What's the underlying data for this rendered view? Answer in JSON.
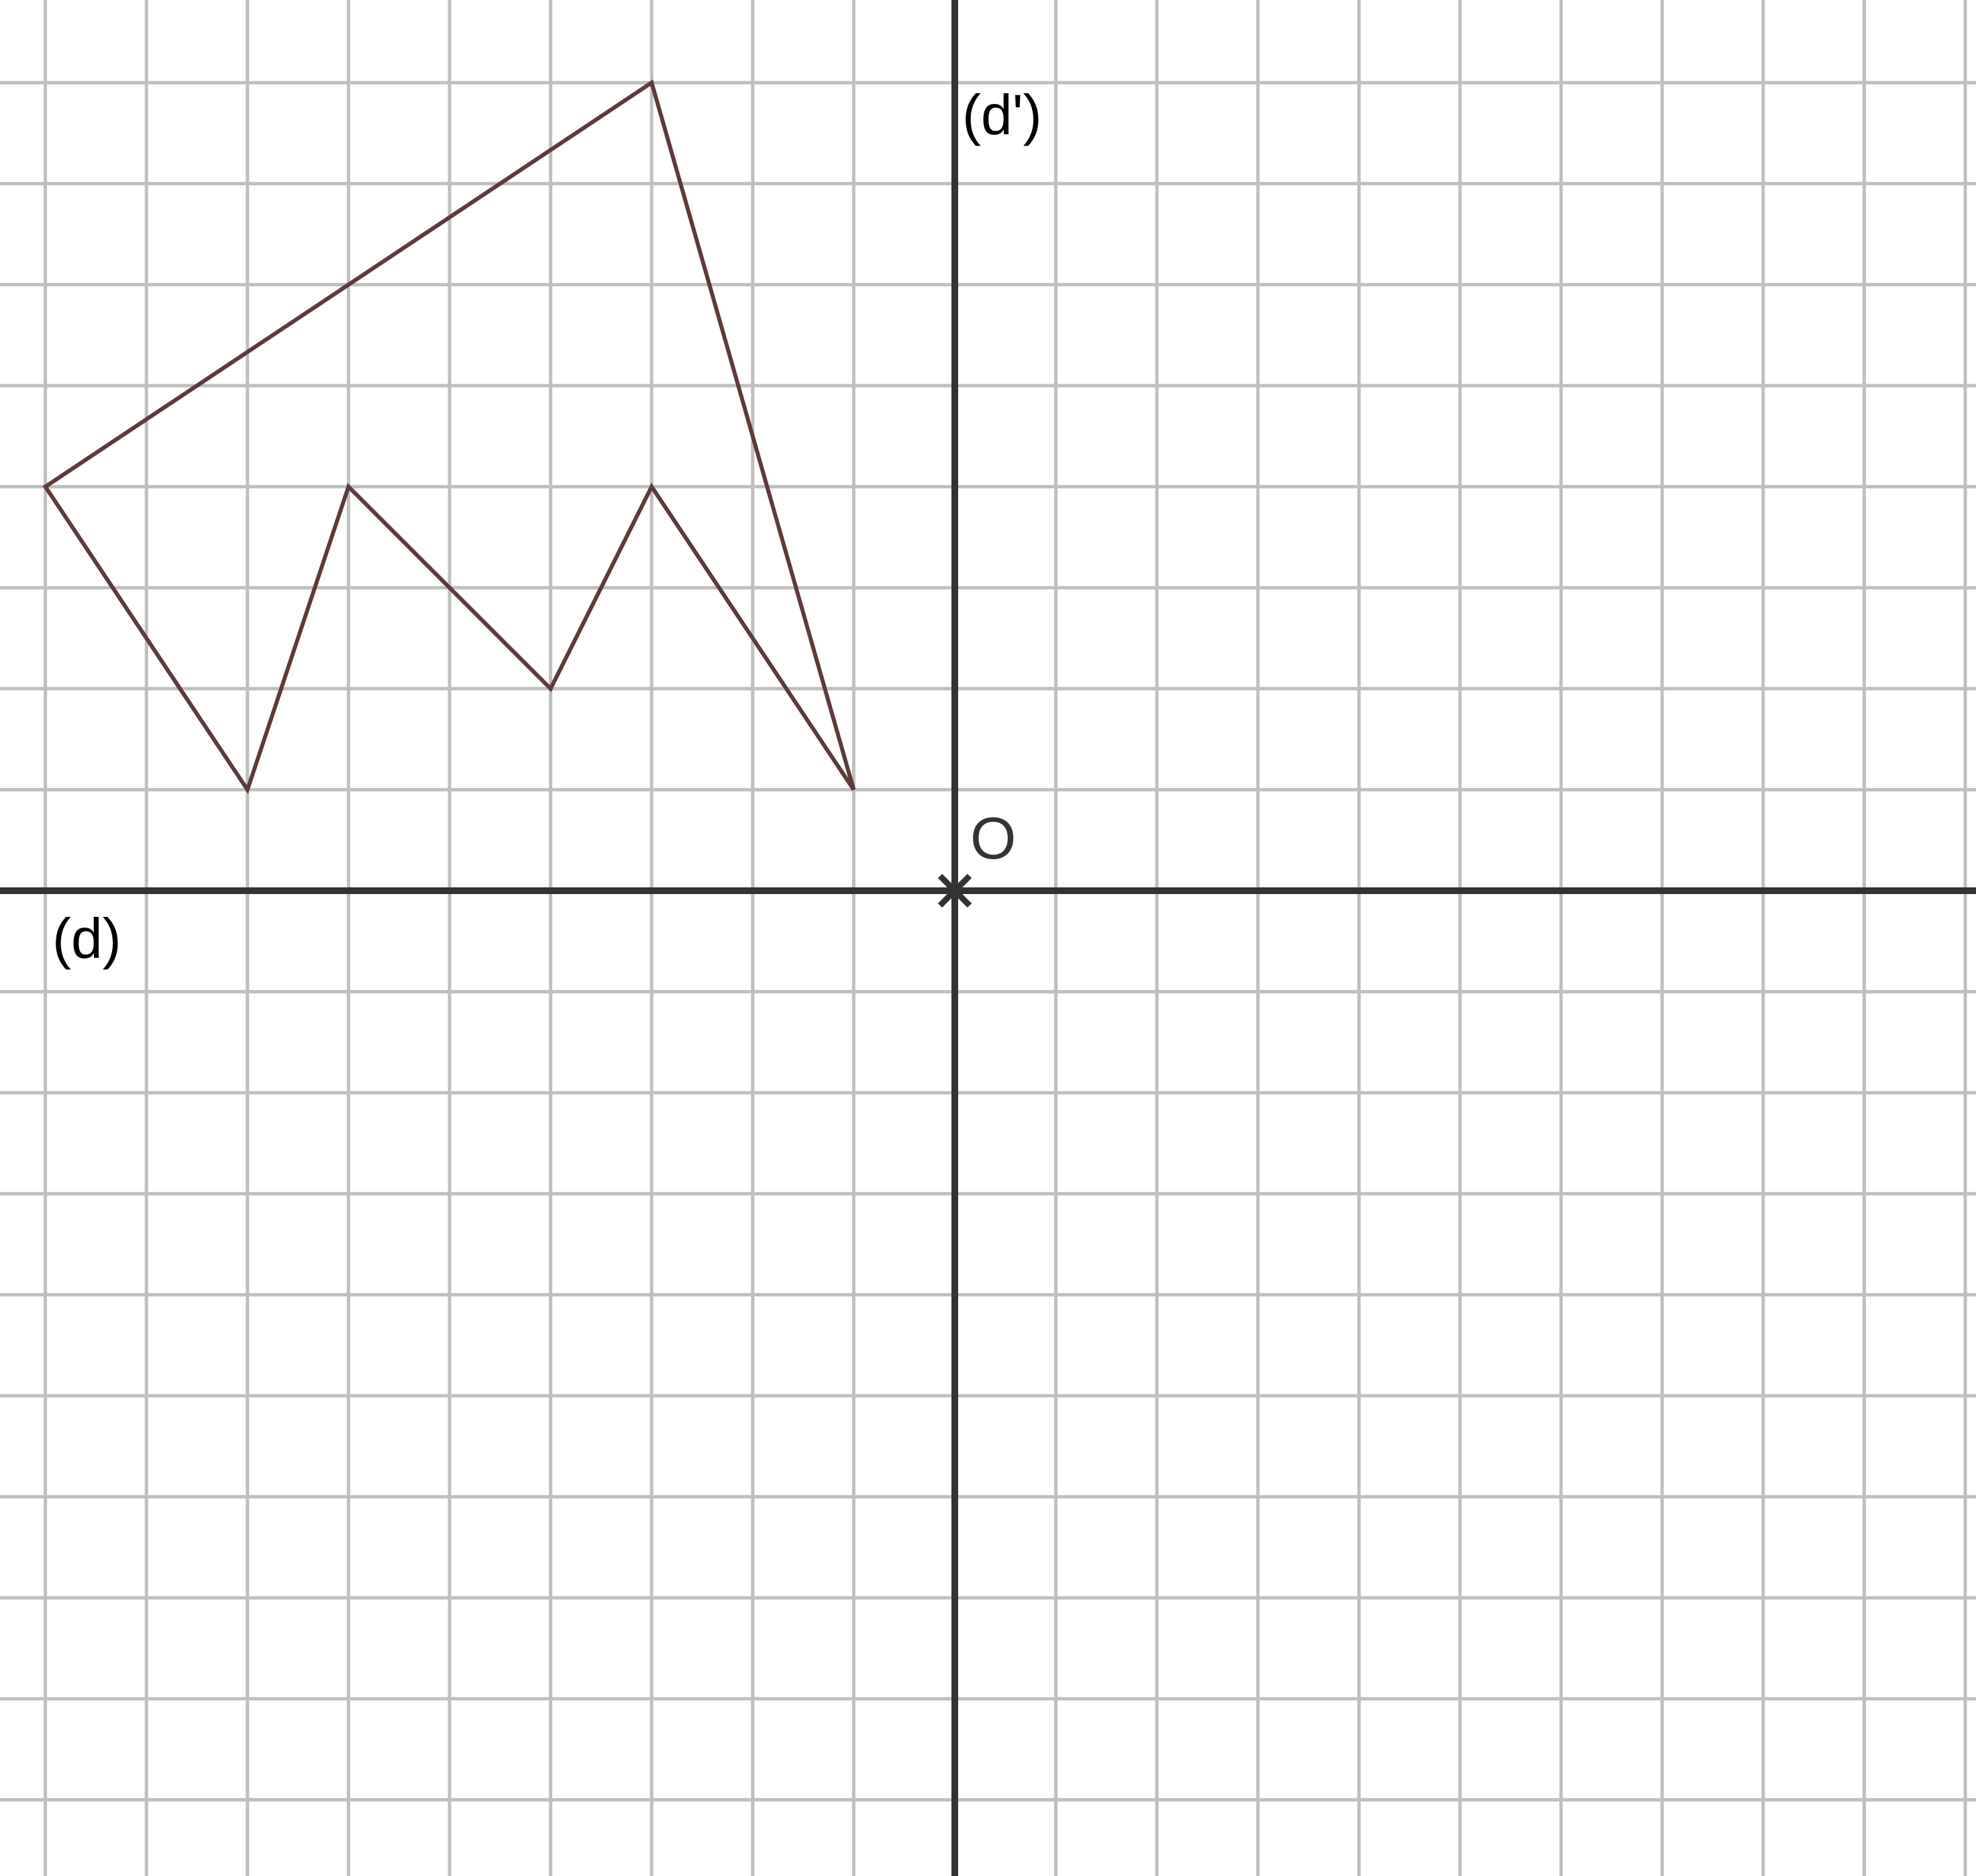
{
  "labels": {
    "line_d": "(d)",
    "line_d_prime": "(d')",
    "origin": "O"
  },
  "colors": {
    "grid": "#bfbfbf",
    "axis": "#333333",
    "polygon": "#5c3b3b",
    "background": "#ffffff"
  },
  "grid": {
    "x_range": [
      -9,
      10
    ],
    "y_range": [
      -9,
      8
    ]
  },
  "polygon_vertices": [
    [
      -9,
      4
    ],
    [
      -3,
      8
    ],
    [
      -1,
      1
    ],
    [
      -3,
      4
    ],
    [
      -4,
      2
    ],
    [
      -6,
      4
    ],
    [
      -7,
      1
    ]
  ]
}
